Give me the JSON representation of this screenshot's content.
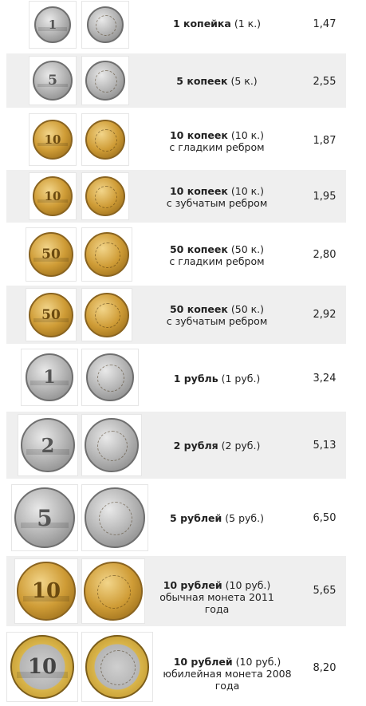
{
  "coins": [
    {
      "name": "1 копейка",
      "abbr": "(1 к.)",
      "note": "",
      "weight": "1,47",
      "face": "1",
      "metal": "silver"
    },
    {
      "name": "5 копеек",
      "abbr": "(5 к.)",
      "note": "",
      "weight": "2,55",
      "face": "5",
      "metal": "silver"
    },
    {
      "name": "10 копеек",
      "abbr": "(10 к.)",
      "note": "с гладким ребром",
      "weight": "1,87",
      "face": "10",
      "metal": "gold"
    },
    {
      "name": "10 копеек",
      "abbr": "(10 к.)",
      "note": "с зубчатым ребром",
      "weight": "1,95",
      "face": "10",
      "metal": "gold"
    },
    {
      "name": "50 копеек",
      "abbr": "(50 к.)",
      "note": "с гладким ребром",
      "weight": "2,80",
      "face": "50",
      "metal": "gold"
    },
    {
      "name": "50 копеек",
      "abbr": "(50 к.)",
      "note": "с зубчатым ребром",
      "weight": "2,92",
      "face": "50",
      "metal": "gold"
    },
    {
      "name": "1 рубль",
      "abbr": "(1 руб.)",
      "note": "",
      "weight": "3,24",
      "face": "1",
      "metal": "silver"
    },
    {
      "name": "2 рубля",
      "abbr": "(2 руб.)",
      "note": "",
      "weight": "5,13",
      "face": "2",
      "metal": "silver"
    },
    {
      "name": "5 рублей",
      "abbr": "(5 руб.)",
      "note": "",
      "weight": "6,50",
      "face": "5",
      "metal": "silver"
    },
    {
      "name": "10 рублей",
      "abbr": "(10 руб.)",
      "note": "обычная монета 2011 года",
      "weight": "5,65",
      "face": "10",
      "metal": "gold"
    },
    {
      "name": "10 рублей",
      "abbr": "(10 руб.)",
      "note": "юбилейная монета 2008 года",
      "weight": "8,20",
      "face": "10",
      "metal": "bimetal"
    }
  ]
}
